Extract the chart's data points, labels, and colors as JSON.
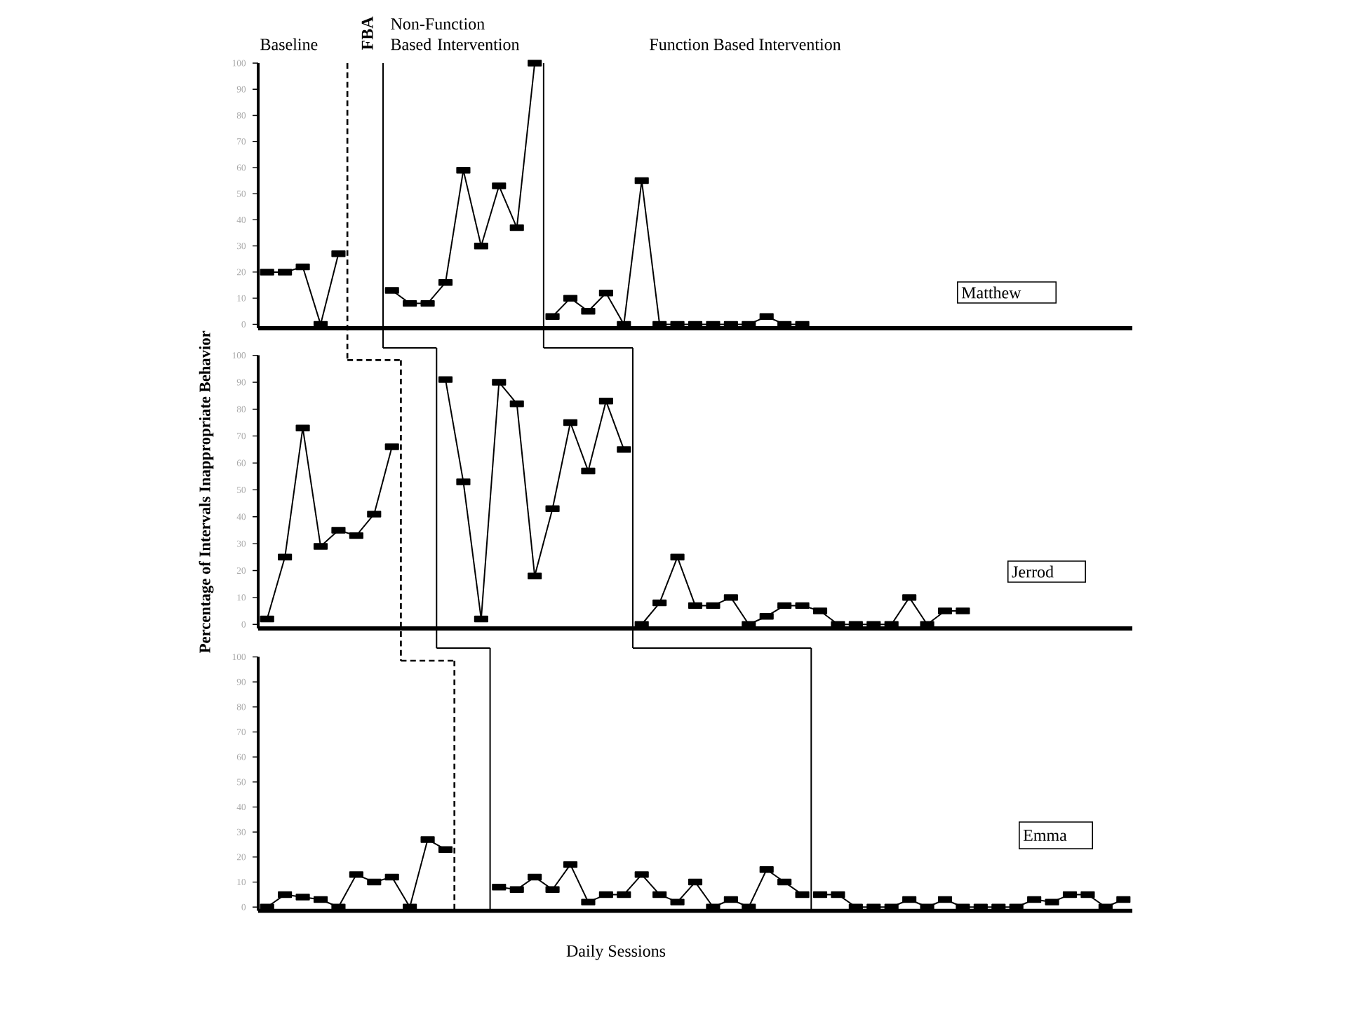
{
  "chart_data": [
    {
      "type": "line",
      "title": "Matthew",
      "annotations": [
        "Baseline",
        "FBA",
        "Non-Function Based Intervention",
        "Function Based Intervention"
      ],
      "categories": [
        null,
        null,
        null,
        null,
        null,
        null,
        null,
        null,
        null,
        null,
        null,
        null,
        null,
        null,
        null,
        null,
        null,
        null,
        null,
        null,
        null,
        null,
        null,
        null,
        null,
        null,
        null,
        null,
        null,
        null,
        null,
        null,
        null,
        null,
        null,
        null,
        null,
        null,
        null,
        null,
        null,
        null,
        null,
        null,
        null,
        null,
        null,
        null,
        null
      ],
      "series": [
        {
          "color": "#000000",
          "values": [
            20,
            20,
            22,
            0,
            27,
            null,
            null,
            null,
            null,
            null,
            null,
            null,
            null,
            null,
            null,
            null,
            null,
            null,
            null,
            null,
            null,
            null,
            null,
            null,
            null,
            null,
            null,
            null,
            null,
            null,
            null,
            null,
            null,
            null,
            null,
            null,
            null,
            null,
            null,
            null,
            null,
            null,
            null,
            null,
            null,
            null,
            null,
            null,
            null
          ]
        },
        {
          "color": "#000000",
          "values": [
            null,
            null,
            null,
            null,
            null,
            null,
            null,
            13,
            8,
            8,
            16,
            59,
            30,
            53,
            37,
            100,
            null,
            null,
            null,
            null,
            null,
            null,
            null,
            null,
            null,
            null,
            null,
            null,
            null,
            null,
            null,
            null,
            null,
            null,
            null,
            null,
            null,
            null,
            null,
            null,
            null,
            null,
            null,
            null,
            null,
            null,
            null,
            null,
            null
          ]
        },
        {
          "color": "#000000",
          "values": [
            null,
            null,
            null,
            null,
            null,
            null,
            null,
            null,
            null,
            null,
            null,
            null,
            null,
            null,
            null,
            null,
            3,
            10,
            5,
            12,
            0,
            55,
            0,
            0,
            0,
            0,
            0,
            0,
            3,
            0,
            0,
            null,
            null,
            null,
            null,
            null,
            null,
            null,
            null,
            null,
            null,
            null,
            null,
            null,
            null,
            null,
            null,
            null,
            null
          ]
        }
      ],
      "ylim": [
        -1.5,
        100
      ],
      "yticks": [
        0,
        10,
        20,
        30,
        40,
        50,
        60,
        70,
        80,
        90,
        100
      ],
      "marker": "square"
    },
    {
      "type": "line",
      "title": "Jerrod",
      "ylabel": "Percentage of Intervals Inappropriate Behavior",
      "categories": [
        null,
        null,
        null,
        null,
        null,
        null,
        null,
        null,
        null,
        null,
        null,
        null,
        null,
        null,
        null,
        null,
        null,
        null,
        null,
        null,
        null,
        null,
        null,
        null,
        null,
        null,
        null,
        null,
        null,
        null,
        null,
        null,
        null,
        null,
        null,
        null,
        null,
        null,
        null,
        null,
        null,
        null,
        null,
        null,
        null,
        null,
        null,
        null,
        null
      ],
      "series": [
        {
          "color": "#000000",
          "values": [
            2,
            25,
            73,
            29,
            35,
            33,
            41,
            66,
            null,
            null,
            null,
            null,
            null,
            null,
            null,
            null,
            null,
            null,
            null,
            null,
            null,
            null,
            null,
            null,
            null,
            null,
            null,
            null,
            null,
            null,
            null,
            null,
            null,
            null,
            null,
            null,
            null,
            null,
            null,
            null,
            null,
            null,
            null,
            null,
            null,
            null,
            null,
            null,
            null
          ]
        },
        {
          "color": "#000000",
          "values": [
            null,
            null,
            null,
            null,
            null,
            null,
            null,
            null,
            null,
            null,
            91,
            53,
            2,
            90,
            82,
            18,
            43,
            75,
            57,
            83,
            65,
            null,
            null,
            null,
            null,
            null,
            null,
            null,
            null,
            null,
            null,
            null,
            null,
            null,
            null,
            null,
            null,
            null,
            null,
            null,
            null,
            null,
            null,
            null,
            null,
            null,
            null,
            null,
            null
          ]
        },
        {
          "color": "#000000",
          "values": [
            null,
            null,
            null,
            null,
            null,
            null,
            null,
            null,
            null,
            null,
            null,
            null,
            null,
            null,
            null,
            null,
            null,
            null,
            null,
            null,
            null,
            0,
            8,
            25,
            7,
            7,
            10,
            0,
            3,
            7,
            7,
            5,
            0,
            0,
            0,
            0,
            10,
            0,
            5,
            5,
            null,
            null,
            null,
            null,
            null,
            null,
            null,
            null,
            null
          ]
        }
      ],
      "ylim": [
        -1.5,
        100
      ],
      "yticks": [
        0,
        10,
        20,
        30,
        40,
        50,
        60,
        70,
        80,
        90,
        100
      ],
      "marker": "square"
    },
    {
      "type": "line",
      "title": "Emma",
      "xlabel": "Daily Sessions",
      "categories": [
        null,
        null,
        null,
        null,
        null,
        null,
        null,
        null,
        null,
        null,
        null,
        null,
        null,
        null,
        null,
        null,
        null,
        null,
        null,
        null,
        null,
        null,
        null,
        null,
        null,
        null,
        null,
        null,
        null,
        null,
        null,
        null,
        null,
        null,
        null,
        null,
        null,
        null,
        null,
        null,
        null,
        null,
        null,
        null,
        null,
        null,
        null,
        null,
        null
      ],
      "series": [
        {
          "color": "#000000",
          "values": [
            0,
            5,
            4,
            3,
            0,
            13,
            10,
            12,
            0,
            27,
            23,
            null,
            null,
            null,
            null,
            null,
            null,
            null,
            null,
            null,
            null,
            null,
            null,
            null,
            null,
            null,
            null,
            null,
            null,
            null,
            null,
            null,
            null,
            null,
            null,
            null,
            null,
            null,
            null,
            null,
            null,
            null,
            null,
            null,
            null,
            null,
            null,
            null,
            null
          ]
        },
        {
          "color": "#000000",
          "values": [
            null,
            null,
            null,
            null,
            null,
            null,
            null,
            null,
            null,
            null,
            null,
            null,
            null,
            8,
            7,
            12,
            7,
            17,
            2,
            5,
            5,
            13,
            5,
            2,
            10,
            0,
            3,
            0,
            15,
            10,
            5,
            null,
            null,
            null,
            null,
            null,
            null,
            null,
            null,
            null,
            null,
            null,
            null,
            null,
            null,
            null,
            null,
            null,
            null
          ]
        },
        {
          "color": "#000000",
          "values": [
            null,
            null,
            null,
            null,
            null,
            null,
            null,
            null,
            null,
            null,
            null,
            null,
            null,
            null,
            null,
            null,
            null,
            null,
            null,
            null,
            null,
            null,
            null,
            null,
            null,
            null,
            null,
            null,
            null,
            null,
            null,
            5,
            5,
            0,
            0,
            0,
            3,
            0,
            3,
            0,
            0,
            0,
            0,
            3,
            2,
            5,
            5,
            0,
            3
          ]
        }
      ],
      "ylim": [
        -1.5,
        100
      ],
      "yticks": [
        0,
        10,
        20,
        30,
        40,
        50,
        60,
        70,
        80,
        90,
        100
      ],
      "marker": "square"
    }
  ]
}
